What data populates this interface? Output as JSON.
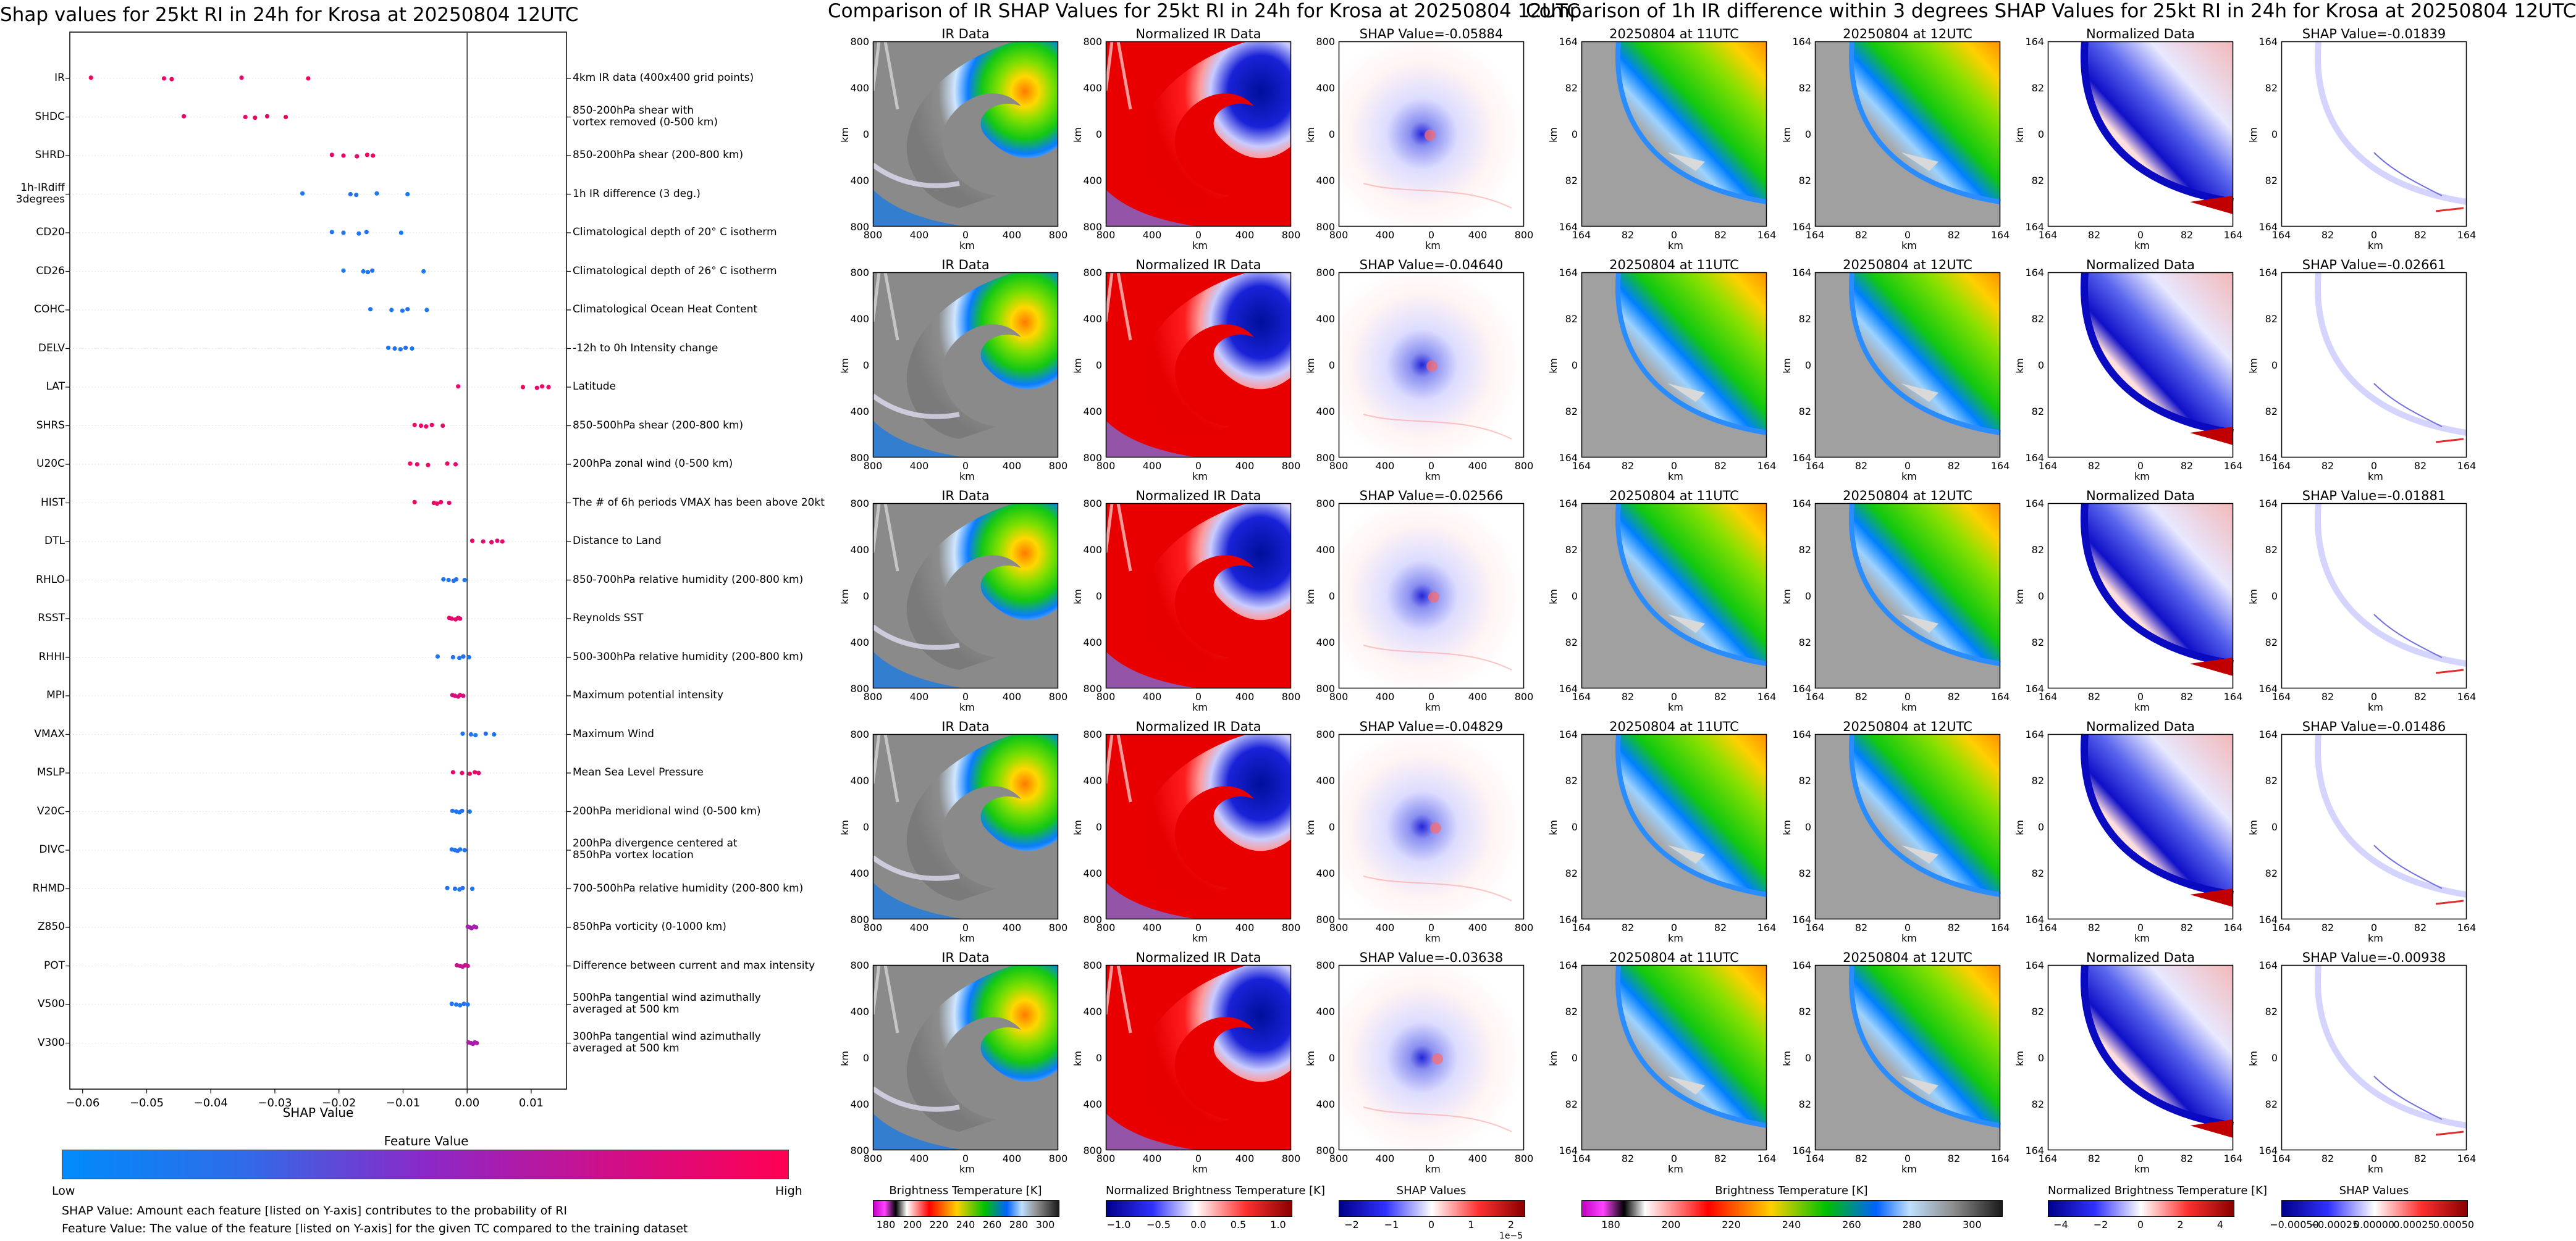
{
  "summary": {
    "title": "Shap values for 25kt RI in 24h for Krosa at 20250804 12UTC",
    "xlabel": "SHAP Value",
    "colorbar_title": "Feature Value",
    "low": "Low",
    "high": "High",
    "note1": "SHAP Value: Amount each feature [listed on Y-axis] contributes to the probability of RI",
    "note2": "Feature Value: The value of the feature [listed on Y-axis] for the given TC compared to the training dataset"
  },
  "chart_data": {
    "type": "scatter",
    "xlabel": "SHAP Value",
    "xticks": [
      "−0.06",
      "−0.05",
      "−0.04",
      "−0.03",
      "−0.02",
      "−0.01",
      "0.00",
      "0.01"
    ],
    "xlim": [
      -0.062,
      0.0155
    ],
    "features": [
      {
        "name": "IR",
        "desc": "4km IR data (400x400 grid points)",
        "points": [
          [
            -0.0587,
            0.95
          ],
          [
            -0.0473,
            0.9
          ],
          [
            -0.0461,
            0.93
          ],
          [
            -0.0352,
            0.9
          ],
          [
            -0.0248,
            0.95
          ]
        ]
      },
      {
        "name": "SHDC",
        "desc": "850-200hPa shear with\nvortex removed (0-500 km)",
        "points": [
          [
            -0.0442,
            0.9
          ],
          [
            -0.0346,
            0.93
          ],
          [
            -0.0331,
            0.9
          ],
          [
            -0.0312,
            0.88
          ],
          [
            -0.0283,
            0.95
          ]
        ]
      },
      {
        "name": "SHRD",
        "desc": "850-200hPa shear (200-800 km)",
        "points": [
          [
            -0.0211,
            0.9
          ],
          [
            -0.0193,
            0.9
          ],
          [
            -0.0172,
            0.88
          ],
          [
            -0.0156,
            0.95
          ],
          [
            -0.0147,
            0.93
          ]
        ]
      },
      {
        "name": "1h-IRdiff\n3degrees",
        "desc": "1h IR difference (3 deg.)",
        "points": [
          [
            -0.0257,
            0.1
          ],
          [
            -0.0182,
            0.15
          ],
          [
            -0.0173,
            0.12
          ],
          [
            -0.0141,
            0.1
          ],
          [
            -0.0093,
            0.08
          ]
        ]
      },
      {
        "name": "CD20",
        "desc": "Climatological depth of 20° C isotherm",
        "points": [
          [
            -0.0211,
            0.1
          ],
          [
            -0.0193,
            0.12
          ],
          [
            -0.0169,
            0.1
          ],
          [
            -0.0157,
            0.15
          ],
          [
            -0.0103,
            0.08
          ]
        ]
      },
      {
        "name": "CD26",
        "desc": "Climatological depth of 26° C isotherm",
        "points": [
          [
            -0.0193,
            0.1
          ],
          [
            -0.0162,
            0.1
          ],
          [
            -0.0155,
            0.12
          ],
          [
            -0.0148,
            0.15
          ],
          [
            -0.0068,
            0.08
          ]
        ]
      },
      {
        "name": "COHC",
        "desc": "Climatological Ocean Heat Content",
        "points": [
          [
            -0.0151,
            0.1
          ],
          [
            -0.0118,
            0.12
          ],
          [
            -0.0101,
            0.1
          ],
          [
            -0.0093,
            0.15
          ],
          [
            -0.0063,
            0.08
          ]
        ]
      },
      {
        "name": "DELV",
        "desc": "-12h to 0h Intensity change",
        "points": [
          [
            -0.0123,
            0.1
          ],
          [
            -0.0113,
            0.12
          ],
          [
            -0.0104,
            0.1
          ],
          [
            -0.0096,
            0.15
          ],
          [
            -0.0086,
            0.08
          ]
        ]
      },
      {
        "name": "LAT",
        "desc": "Latitude",
        "points": [
          [
            -0.0014,
            0.92
          ],
          [
            0.0087,
            0.95
          ],
          [
            0.0109,
            0.9
          ],
          [
            0.0117,
            0.93
          ],
          [
            0.0127,
            0.9
          ]
        ]
      },
      {
        "name": "SHRS",
        "desc": "850-500hPa shear (200-800 km)",
        "points": [
          [
            -0.0082,
            0.9
          ],
          [
            -0.0072,
            0.92
          ],
          [
            -0.0064,
            0.95
          ],
          [
            -0.0055,
            0.9
          ],
          [
            -0.0038,
            0.88
          ]
        ]
      },
      {
        "name": "U20C",
        "desc": "200hPa zonal wind (0-500 km)",
        "points": [
          [
            -0.0089,
            0.95
          ],
          [
            -0.0078,
            0.9
          ],
          [
            -0.0061,
            0.92
          ],
          [
            -0.0031,
            0.9
          ],
          [
            -0.0018,
            0.88
          ]
        ]
      },
      {
        "name": "HIST",
        "desc": "The # of 6h periods VMAX has been above 20kt",
        "points": [
          [
            -0.0082,
            0.95
          ],
          [
            -0.0052,
            0.9
          ],
          [
            -0.0047,
            0.92
          ],
          [
            -0.0041,
            0.9
          ],
          [
            -0.0028,
            0.88
          ]
        ]
      },
      {
        "name": "DTL",
        "desc": "Distance to Land",
        "points": [
          [
            0.0008,
            0.92
          ],
          [
            0.0025,
            0.88
          ],
          [
            0.0038,
            0.9
          ],
          [
            0.0047,
            0.85
          ],
          [
            0.0055,
            0.9
          ]
        ]
      },
      {
        "name": "RHLO",
        "desc": "850-700hPa relative humidity (200-800 km)",
        "points": [
          [
            -0.0037,
            0.1
          ],
          [
            -0.0029,
            0.12
          ],
          [
            -0.0021,
            0.1
          ],
          [
            -0.0017,
            0.15
          ],
          [
            -0.0004,
            0.1
          ]
        ]
      },
      {
        "name": "RSST",
        "desc": "Reynolds SST",
        "points": [
          [
            -0.0028,
            0.9
          ],
          [
            -0.0024,
            0.85
          ],
          [
            -0.0018,
            0.92
          ],
          [
            -0.0014,
            0.9
          ],
          [
            -0.0011,
            0.88
          ]
        ]
      },
      {
        "name": "RHHI",
        "desc": "500-300hPa relative humidity (200-800 km)",
        "points": [
          [
            -0.0046,
            0.1
          ],
          [
            -0.0022,
            0.12
          ],
          [
            -0.0012,
            0.1
          ],
          [
            -0.0006,
            0.15
          ],
          [
            0.0003,
            0.1
          ]
        ]
      },
      {
        "name": "MPI",
        "desc": "Maximum potential intensity",
        "points": [
          [
            -0.0023,
            0.8
          ],
          [
            -0.0019,
            0.85
          ],
          [
            -0.0014,
            0.82
          ],
          [
            -0.0011,
            0.88
          ],
          [
            -0.0006,
            0.8
          ]
        ]
      },
      {
        "name": "VMAX",
        "desc": "Maximum Wind",
        "points": [
          [
            -0.0007,
            0.1
          ],
          [
            0.0006,
            0.12
          ],
          [
            0.0013,
            0.1
          ],
          [
            0.0029,
            0.15
          ],
          [
            0.0042,
            0.1
          ]
        ]
      },
      {
        "name": "MSLP",
        "desc": "Mean Sea Level Pressure",
        "points": [
          [
            -0.0022,
            0.88
          ],
          [
            -0.0008,
            0.9
          ],
          [
            0.0004,
            0.92
          ],
          [
            0.0012,
            0.9
          ],
          [
            0.0018,
            0.88
          ]
        ]
      },
      {
        "name": "V20C",
        "desc": "200hPa meridional wind (0-500 km)",
        "points": [
          [
            -0.0023,
            0.1
          ],
          [
            -0.0017,
            0.12
          ],
          [
            -0.0012,
            0.1
          ],
          [
            -0.0008,
            0.15
          ],
          [
            0.0004,
            0.1
          ]
        ]
      },
      {
        "name": "DIVC",
        "desc": "200hPa divergence centered at\n850hPa vortex location",
        "points": [
          [
            -0.0024,
            0.12
          ],
          [
            -0.0019,
            0.1
          ],
          [
            -0.0015,
            0.15
          ],
          [
            -0.0011,
            0.1
          ],
          [
            -0.0004,
            0.12
          ]
        ]
      },
      {
        "name": "RHMD",
        "desc": "700-500hPa relative humidity (200-800 km)",
        "points": [
          [
            -0.0031,
            0.1
          ],
          [
            -0.0019,
            0.12
          ],
          [
            -0.0012,
            0.1
          ],
          [
            -0.0007,
            0.15
          ],
          [
            0.0008,
            0.1
          ]
        ]
      },
      {
        "name": "Z850",
        "desc": "850hPa vorticity (0-1000 km)",
        "points": [
          [
            0.0001,
            0.6
          ],
          [
            0.0004,
            0.62
          ],
          [
            0.0007,
            0.6
          ],
          [
            0.0011,
            0.62
          ],
          [
            0.0014,
            0.6
          ]
        ]
      },
      {
        "name": "POT",
        "desc": "Difference between current and max intensity",
        "points": [
          [
            -0.0016,
            0.75
          ],
          [
            -0.0011,
            0.78
          ],
          [
            -0.0007,
            0.72
          ],
          [
            -0.0003,
            0.76
          ],
          [
            0.0001,
            0.75
          ]
        ]
      },
      {
        "name": "V500",
        "desc": "500hPa tangential wind azimuthally\naveraged at 500 km",
        "points": [
          [
            -0.0024,
            0.1
          ],
          [
            -0.0017,
            0.12
          ],
          [
            -0.0011,
            0.1
          ],
          [
            -0.0005,
            0.15
          ],
          [
            0.0001,
            0.1
          ]
        ]
      },
      {
        "name": "V300",
        "desc": "300hPa tangential wind azimuthally\naveraged at 500 km",
        "points": [
          [
            0.0002,
            0.65
          ],
          [
            0.0006,
            0.62
          ],
          [
            0.0009,
            0.65
          ],
          [
            0.0012,
            0.62
          ],
          [
            0.0015,
            0.65
          ]
        ]
      }
    ]
  },
  "ir_section": {
    "title": "Comparison of IR SHAP Values for 25kt RI in 24h for Krosa at 20250804 12UTC",
    "col_titles": [
      "IR Data",
      "Normalized IR Data"
    ],
    "shap_values": [
      "SHAP Value=-0.05884",
      "SHAP Value=-0.04640",
      "SHAP Value=-0.02566",
      "SHAP Value=-0.04829",
      "SHAP Value=-0.03638"
    ],
    "yticks": [
      "800",
      "400",
      "0",
      "400",
      "800"
    ],
    "xticks": [
      "800",
      "400",
      "0",
      "400",
      "800"
    ],
    "axis_label": "km",
    "cbar1": {
      "label": "Brightness Temperature [K]",
      "ticks": [
        "180",
        "200",
        "220",
        "240",
        "260",
        "280",
        "300"
      ]
    },
    "cbar2": {
      "label": "Normalized Brightness Temperature [K]",
      "ticks": [
        "−1.0",
        "−0.5",
        "0.0",
        "0.5",
        "1.0"
      ]
    },
    "cbar3": {
      "label": "SHAP Values",
      "ticks": [
        "−2",
        "−1",
        "0",
        "1",
        "2"
      ],
      "exponent": "1e−5"
    }
  },
  "diff_section": {
    "title": "Comparison of 1h IR difference within 3 degrees SHAP Values for 25kt RI in 24h for Krosa at 20250804 12UTC",
    "col_titles": [
      "20250804 at 11UTC",
      "20250804 at 12UTC",
      "Normalized Data"
    ],
    "shap_values": [
      "SHAP Value=-0.01839",
      "SHAP Value=-0.02661",
      "SHAP Value=-0.01881",
      "SHAP Value=-0.01486",
      "SHAP Value=-0.00938"
    ],
    "yticks": [
      "164",
      "82",
      "0",
      "82",
      "164"
    ],
    "xticks": [
      "164",
      "82",
      "0",
      "82",
      "164"
    ],
    "axis_label": "km",
    "cbar1": {
      "label": "Brightness Temperature [K]",
      "ticks": [
        "180",
        "200",
        "220",
        "240",
        "260",
        "280",
        "300"
      ]
    },
    "cbar2": {
      "label": "Normalized Brightness Temperature [K]",
      "ticks": [
        "−4",
        "−2",
        "0",
        "2",
        "4"
      ]
    },
    "cbar3": {
      "label": "SHAP Values",
      "ticks": [
        "−0.00050",
        "−0.00025",
        "0.00000",
        "0.00025",
        "0.00050"
      ]
    }
  },
  "colors": {
    "low": "#008bfb",
    "mid": "#8b28c8",
    "high": "#ff0052"
  }
}
